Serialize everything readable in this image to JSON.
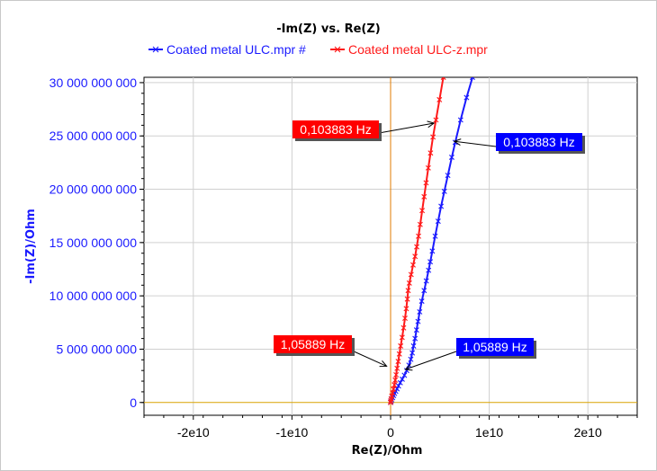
{
  "chart_data": {
    "type": "line",
    "title": "-Im(Z) vs. Re(Z)",
    "xlabel": "Re(Z)/Ohm",
    "ylabel": "-Im(Z)/Ohm",
    "xlim": [
      -25000000000,
      25000000000
    ],
    "ylim": [
      -1200000000,
      30500000000
    ],
    "grid": true,
    "legend_position": "top",
    "x_ticks": [
      {
        "value": -20000000000,
        "label": "-2e10"
      },
      {
        "value": -10000000000,
        "label": "-1e10"
      },
      {
        "value": 0,
        "label": "0"
      },
      {
        "value": 10000000000,
        "label": "1e10"
      },
      {
        "value": 20000000000,
        "label": "2e10"
      }
    ],
    "y_ticks": [
      {
        "value": 0,
        "label": "0"
      },
      {
        "value": 5000000000,
        "label": "5 000 000 000"
      },
      {
        "value": 10000000000,
        "label": "10 000 000 000"
      },
      {
        "value": 15000000000,
        "label": "15 000 000 000"
      },
      {
        "value": 20000000000,
        "label": "20 000 000 000"
      },
      {
        "value": 25000000000,
        "label": "25 000 000 000"
      },
      {
        "value": 30000000000,
        "label": "30 000 000 000"
      }
    ],
    "series": [
      {
        "name": "Coated metal ULC.mpr #",
        "color": "#1a1aff",
        "marker": "x",
        "points": [
          [
            0,
            0
          ],
          [
            40000000,
            100000000
          ],
          [
            100000000,
            250000000
          ],
          [
            200000000,
            450000000
          ],
          [
            300000000,
            650000000
          ],
          [
            400000000,
            850000000
          ],
          [
            520000000,
            1050000000
          ],
          [
            650000000,
            1280000000
          ],
          [
            800000000,
            1550000000
          ],
          [
            980000000,
            1850000000
          ],
          [
            1180000000,
            2180000000
          ],
          [
            1400000000,
            2550000000
          ],
          [
            1630000000,
            3000000000
          ],
          [
            1860000000,
            3500000000
          ],
          [
            2050000000,
            4050000000
          ],
          [
            2200000000,
            4650000000
          ],
          [
            2330000000,
            5300000000
          ],
          [
            2480000000,
            6000000000
          ],
          [
            2630000000,
            6800000000
          ],
          [
            2780000000,
            7600000000
          ],
          [
            2950000000,
            8500000000
          ],
          [
            3160000000,
            9500000000
          ],
          [
            3400000000,
            10500000000
          ],
          [
            3620000000,
            11400000000
          ],
          [
            3850000000,
            12400000000
          ],
          [
            4020000000,
            13200000000
          ],
          [
            4230000000,
            14200000000
          ],
          [
            4520000000,
            15600000000
          ],
          [
            4820000000,
            17000000000
          ],
          [
            5120000000,
            18400000000
          ],
          [
            5450000000,
            19800000000
          ],
          [
            5800000000,
            21300000000
          ],
          [
            6200000000,
            23000000000
          ],
          [
            6550000000,
            24400000000
          ],
          [
            7100000000,
            26500000000
          ],
          [
            7700000000,
            28600000000
          ],
          [
            8300000000,
            30500000000
          ]
        ]
      },
      {
        "name": "Coated metal ULC-z.mpr",
        "color": "#ff1a1a",
        "marker": "x",
        "points": [
          [
            0,
            0
          ],
          [
            20000000,
            150000000
          ],
          [
            60000000,
            350000000
          ],
          [
            120000000,
            600000000
          ],
          [
            200000000,
            900000000
          ],
          [
            290000000,
            1250000000
          ],
          [
            380000000,
            1650000000
          ],
          [
            470000000,
            2100000000
          ],
          [
            560000000,
            2600000000
          ],
          [
            660000000,
            3200000000
          ],
          [
            770000000,
            3850000000
          ],
          [
            890000000,
            4550000000
          ],
          [
            1020000000,
            5300000000
          ],
          [
            1170000000,
            6100000000
          ],
          [
            1320000000,
            7000000000
          ],
          [
            1460000000,
            7900000000
          ],
          [
            1590000000,
            8800000000
          ],
          [
            1700000000,
            9700000000
          ],
          [
            1780000000,
            10500000000
          ],
          [
            1900000000,
            11200000000
          ],
          [
            2080000000,
            12000000000
          ],
          [
            2280000000,
            12900000000
          ],
          [
            2480000000,
            13700000000
          ],
          [
            2650000000,
            14600000000
          ],
          [
            2830000000,
            15600000000
          ],
          [
            3000000000,
            16700000000
          ],
          [
            3200000000,
            18000000000
          ],
          [
            3400000000,
            19300000000
          ],
          [
            3600000000,
            20600000000
          ],
          [
            3820000000,
            22000000000
          ],
          [
            4050000000,
            23400000000
          ],
          [
            4300000000,
            24900000000
          ],
          [
            4600000000,
            26500000000
          ],
          [
            4950000000,
            28400000000
          ],
          [
            5350000000,
            30500000000
          ]
        ]
      }
    ],
    "annotations": [
      {
        "text": "0,103883 Hz",
        "color": "#ff0000",
        "x": 4400000000,
        "y": 26200000000
      },
      {
        "text": "0,103883 Hz",
        "color": "#0000ff",
        "x": 6450000000,
        "y": 24500000000
      },
      {
        "text": "1,05889 Hz",
        "color": "#ff0000",
        "x": -400000000,
        "y": 3400000000
      },
      {
        "text": "1,05889 Hz",
        "color": "#0000ff",
        "x": 1500000000,
        "y": 3100000000
      }
    ]
  },
  "axis_line_color": "#d9a300",
  "zero_line_color": "#e07b00"
}
